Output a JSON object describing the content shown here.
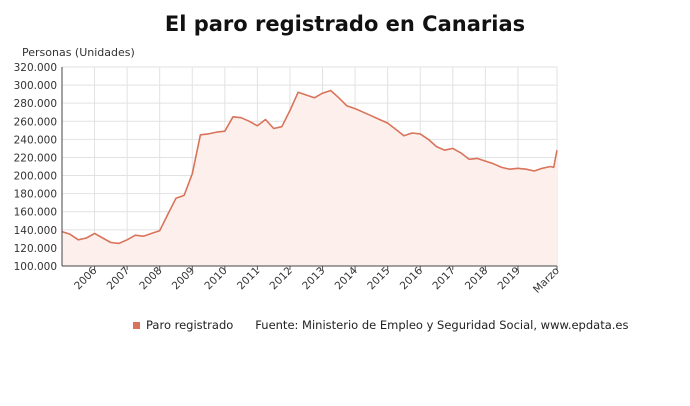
{
  "chart_data": {
    "type": "area",
    "title": "El paro registrado en Canarias",
    "ylabel": "Personas (Unidades)",
    "xlabel": "",
    "ylim": [
      100000,
      320000
    ],
    "yticks": [
      "100.000",
      "120.000",
      "140.000",
      "160.000",
      "180.000",
      "200.000",
      "220.000",
      "240.000",
      "260.000",
      "280.000",
      "300.000",
      "320.000"
    ],
    "xlim": [
      2005.0,
      2020.2
    ],
    "xticks": [
      {
        "x": 2006.0,
        "label": "2006"
      },
      {
        "x": 2007.0,
        "label": "2007"
      },
      {
        "x": 2008.0,
        "label": "2008"
      },
      {
        "x": 2009.0,
        "label": "2009"
      },
      {
        "x": 2010.0,
        "label": "2010"
      },
      {
        "x": 2011.0,
        "label": "2011"
      },
      {
        "x": 2012.0,
        "label": "2012"
      },
      {
        "x": 2013.0,
        "label": "2013"
      },
      {
        "x": 2014.0,
        "label": "2014"
      },
      {
        "x": 2015.0,
        "label": "2015"
      },
      {
        "x": 2016.0,
        "label": "2016"
      },
      {
        "x": 2017.0,
        "label": "2017"
      },
      {
        "x": 2018.0,
        "label": "2018"
      },
      {
        "x": 2019.0,
        "label": "2019"
      },
      {
        "x": 2020.2,
        "label": "Marzo"
      }
    ],
    "grid": true,
    "legend_placement": "bottom",
    "line_color": "#d9735a",
    "fill_color": "#fdf0ec",
    "series": [
      {
        "name": "Paro registrado",
        "x": [
          2005.0,
          2005.25,
          2005.5,
          2005.75,
          2006.0,
          2006.25,
          2006.5,
          2006.75,
          2007.0,
          2007.25,
          2007.5,
          2007.75,
          2008.0,
          2008.25,
          2008.5,
          2008.75,
          2009.0,
          2009.25,
          2009.5,
          2009.75,
          2010.0,
          2010.25,
          2010.5,
          2010.75,
          2011.0,
          2011.25,
          2011.5,
          2011.75,
          2012.0,
          2012.25,
          2012.5,
          2012.75,
          2013.0,
          2013.25,
          2013.5,
          2013.75,
          2014.0,
          2014.25,
          2014.5,
          2014.75,
          2015.0,
          2015.25,
          2015.5,
          2015.75,
          2016.0,
          2016.25,
          2016.5,
          2016.75,
          2017.0,
          2017.25,
          2017.5,
          2017.75,
          2018.0,
          2018.25,
          2018.5,
          2018.75,
          2019.0,
          2019.25,
          2019.5,
          2019.75,
          2020.0,
          2020.1,
          2020.2
        ],
        "values": [
          138000,
          135000,
          129000,
          131000,
          136000,
          131000,
          126000,
          125000,
          129000,
          134000,
          133000,
          136000,
          139000,
          157000,
          175000,
          178000,
          202000,
          245000,
          246000,
          248000,
          249000,
          265000,
          264000,
          260000,
          255000,
          262000,
          252000,
          254000,
          272000,
          292000,
          289000,
          286000,
          291000,
          294000,
          286000,
          277000,
          274000,
          270000,
          266000,
          262000,
          258000,
          251000,
          244000,
          247000,
          246000,
          240000,
          232000,
          228000,
          230000,
          225000,
          218000,
          219000,
          216000,
          213000,
          209000,
          207000,
          208000,
          207000,
          205000,
          208000,
          210000,
          209000,
          228000
        ]
      }
    ],
    "source": "Fuente: Ministerio de Empleo y Seguridad Social, www.epdata.es"
  }
}
